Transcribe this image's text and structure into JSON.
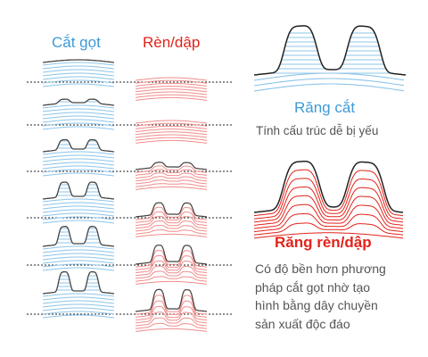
{
  "labels": {
    "cut_column": "Cắt gọt",
    "forge_column": "Rèn/dập",
    "cut_title": "Răng cắt",
    "cut_desc": "Tính cấu trúc dễ bị yếu",
    "forge_title": "Răng rèn/dập",
    "forge_desc_lines": [
      "Có độ bền hơn phương",
      "pháp cắt gọt nhờ tạo",
      "hình bằng dây chuyền",
      "sản xuất độc đáo"
    ]
  },
  "colors": {
    "cut": "#3e9bd6",
    "forge": "#e2231a",
    "forge_line": "#f08c8c",
    "cut_line": "#8cc4ea",
    "outline": "#444444"
  },
  "stages": [
    {
      "name": "blank",
      "cut_tooth_height": 0,
      "forge_tooth_height": 0
    },
    {
      "name": "stage-1",
      "cut_tooth_height": 0.2,
      "forge_tooth_height": 0
    },
    {
      "name": "stage-2",
      "cut_tooth_height": 0.5,
      "forge_tooth_height": 0.25
    },
    {
      "name": "stage-3",
      "cut_tooth_height": 0.75,
      "forge_tooth_height": 0.6
    },
    {
      "name": "stage-4",
      "cut_tooth_height": 0.9,
      "forge_tooth_height": 0.85
    },
    {
      "name": "final",
      "cut_tooth_height": 1,
      "forge_tooth_height": 1
    }
  ]
}
